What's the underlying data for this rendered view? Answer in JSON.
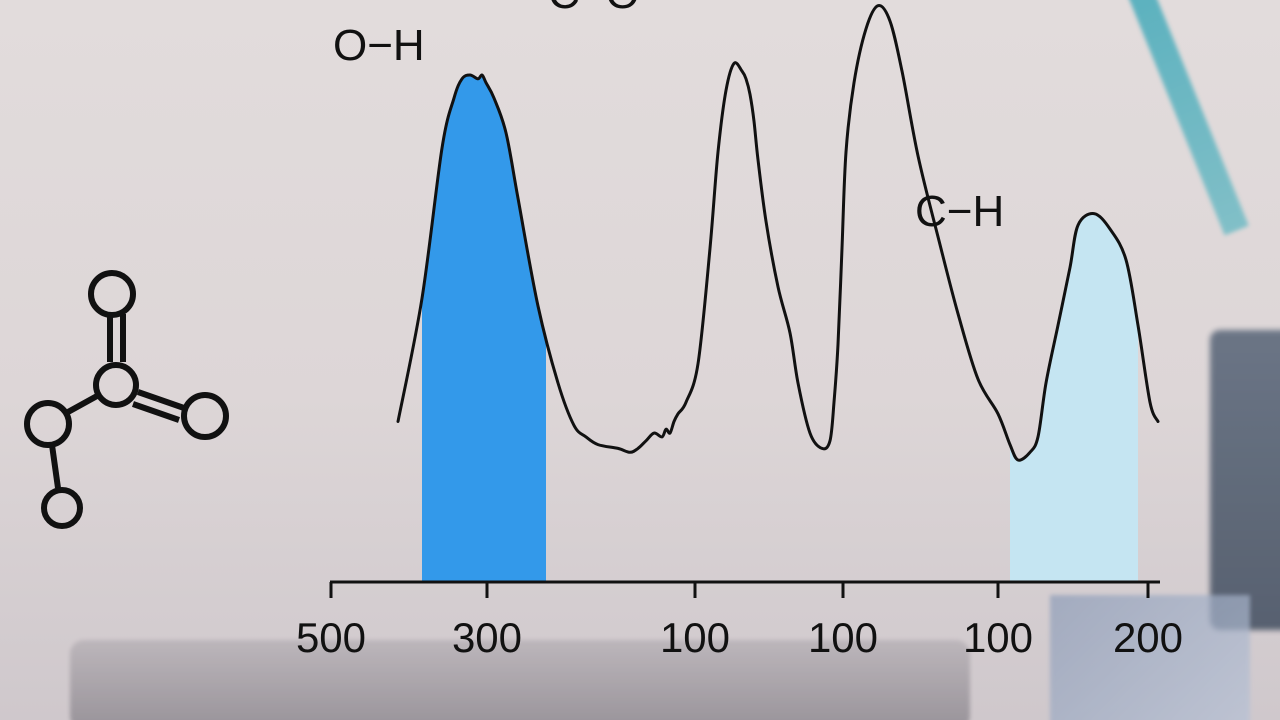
{
  "chart_data": {
    "type": "line",
    "title": "",
    "xlabel": "",
    "ylabel": "",
    "grid": false,
    "x_tick_labels": [
      "500",
      "300",
      "100",
      "100",
      "100",
      "200"
    ],
    "series": [
      {
        "x": [
          0,
          6,
          11,
          14,
          16,
          18,
          20,
          21,
          22,
          24,
          27,
          30,
          35,
          40,
          44,
          47,
          50,
          55,
          58,
          60,
          62,
          64,
          66,
          67,
          68,
          69,
          70,
          72,
          75,
          78,
          80,
          82,
          84,
          86,
          87,
          88,
          89,
          90,
          92,
          95,
          98,
          100,
          103,
          106,
          108,
          109,
          110,
          111,
          112,
          114,
          117,
          120,
          123,
          126,
          130,
          135,
          140,
          145,
          150,
          153,
          155,
          158,
          160,
          162,
          165,
          168,
          170,
          174,
          178,
          182,
          185,
          188,
          190
        ],
        "y": [
          10,
          42,
          81,
          94,
          99,
          100,
          99,
          100,
          98,
          94,
          85,
          68,
          40,
          20,
          9,
          6,
          4,
          3,
          2,
          3,
          5,
          7,
          6,
          8,
          7,
          10,
          12,
          15,
          25,
          55,
          80,
          96,
          103,
          101,
          99,
          95,
          88,
          78,
          62,
          45,
          33,
          20,
          7,
          3,
          5,
          15,
          30,
          55,
          80,
          98,
          112,
          118,
          114,
          101,
          79,
          58,
          38,
          21,
          12,
          4,
          0,
          2,
          6,
          20,
          35,
          50,
          61,
          64,
          60,
          52,
          35,
          15,
          10
        ],
        "color": "#111111"
      }
    ],
    "shaded_bands": [
      {
        "label": "O−H",
        "x_range": [
          6,
          37
        ],
        "color": "#3399ea"
      },
      {
        "label": "C−H",
        "x_range": [
          153,
          185
        ],
        "color": "#c5e5f2"
      }
    ],
    "annotations": [
      "O−H",
      "C−O",
      "C−H"
    ]
  },
  "molecule": {
    "icon": "molecule-icon"
  }
}
